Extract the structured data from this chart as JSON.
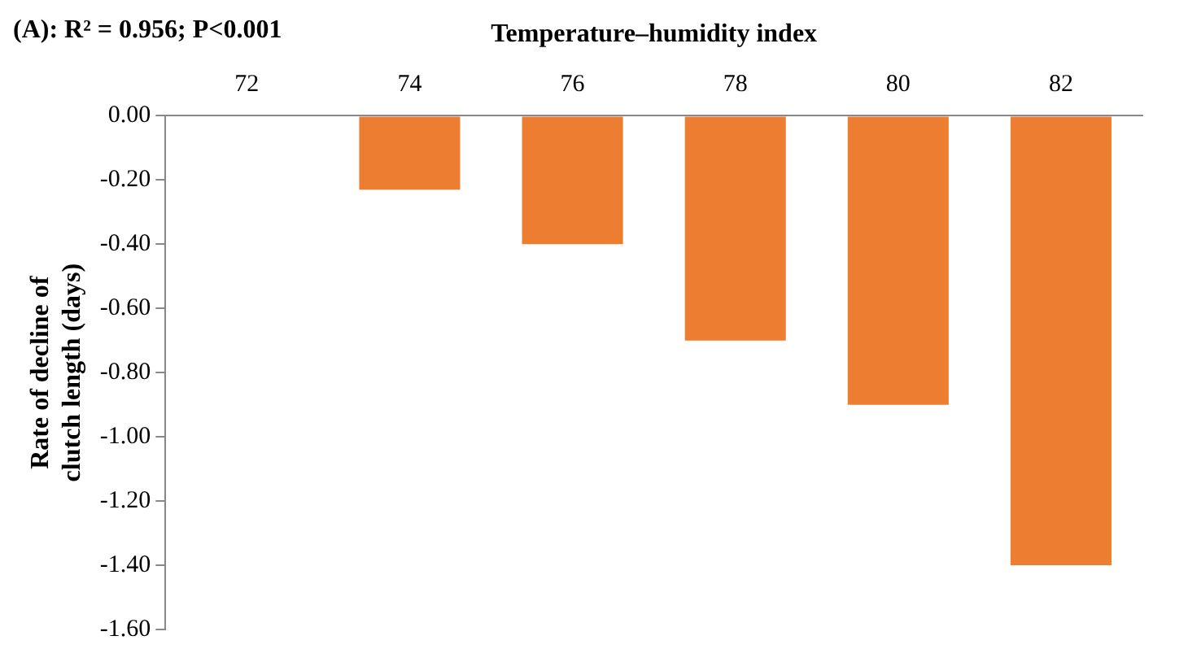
{
  "chart_data": {
    "type": "bar",
    "title": "(A): R² = 0.956; P<0.001",
    "xlabel": "Temperature–humidity index",
    "ylabel": "Rate of decline of clutch length (days)",
    "categories": [
      "72",
      "74",
      "76",
      "78",
      "80",
      "82"
    ],
    "values": [
      0,
      -0.23,
      -0.4,
      -0.7,
      -0.9,
      -1.4
    ],
    "color": "#ed7d31",
    "ylim": [
      -1.6,
      0
    ],
    "yticks": [
      {
        "value": -1.6,
        "label": "-1.60"
      },
      {
        "value": -1.4,
        "label": "-1.40"
      },
      {
        "value": -1.2,
        "label": "-1.20"
      },
      {
        "value": -1,
        "label": "-1.00"
      },
      {
        "value": -0.8,
        "label": "-0.80"
      },
      {
        "value": -0.6,
        "label": "-0.60"
      },
      {
        "value": -0.4,
        "label": "-0.40"
      },
      {
        "value": -0.2,
        "label": "-0.20"
      },
      {
        "value": 0,
        "label": "0.00"
      }
    ],
    "grid": false,
    "legend": false
  }
}
